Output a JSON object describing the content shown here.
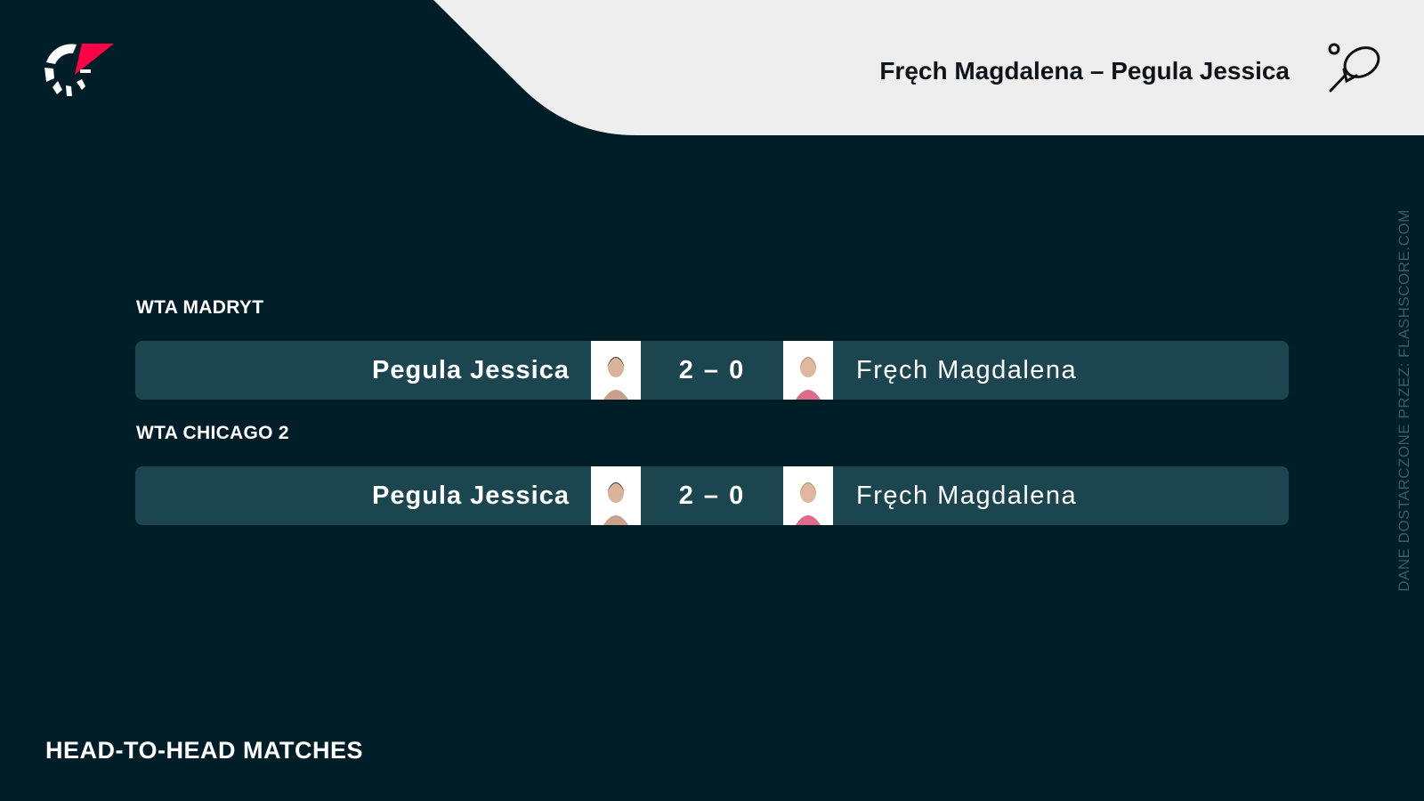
{
  "header": {
    "title": "Fręch Magdalena – Pegula Jessica",
    "sport_icon": "tennis-racket-icon",
    "logo": "flashscore-logo"
  },
  "matches": [
    {
      "tournament": "WTA MADRYT",
      "home": "Pegula Jessica",
      "score": "2 – 0",
      "away": "Fręch Magdalena"
    },
    {
      "tournament": "WTA CHICAGO 2",
      "home": "Pegula Jessica",
      "score": "2 – 0",
      "away": "Fręch Magdalena"
    }
  ],
  "footer": {
    "title": "HEAD-TO-HEAD MATCHES"
  },
  "credit": "DANE DOSTARCZONE PRZEZ: FLASHSCORE.COM",
  "colors": {
    "background": "#001e28",
    "row": "#1b4650",
    "header_panel": "#eeeeee",
    "accent": "#ff0046"
  }
}
